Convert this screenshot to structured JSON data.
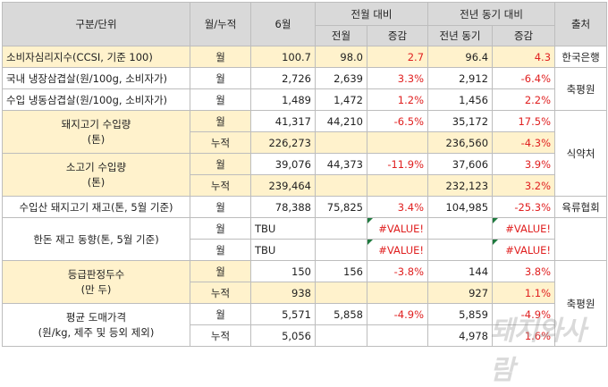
{
  "header": {
    "category": "구분/단위",
    "period": "월/누적",
    "month": "6월",
    "mom_group": "전월 대비",
    "yoy_group": "전년 동기 대비",
    "source": "출처",
    "prev_month": "전월",
    "change": "증감",
    "prev_year": "전년 동기",
    "change2": "증감"
  },
  "rows": [
    {
      "label": "소비자심리지수(CCSI, 기준 100)",
      "period": "월",
      "value": "100.7",
      "prev": "98.0",
      "chg": "2.7",
      "py": "96.4",
      "pychg": "4.3",
      "source": "한국은행"
    },
    {
      "label": "국내 냉장삼겹살(원/100g, 소비자가)",
      "period": "월",
      "value": "2,726",
      "prev": "2,639",
      "chg": "3.3%",
      "py": "2,912",
      "pychg": "-6.4%",
      "source": "축평원"
    },
    {
      "label": "수입 냉동삼겹살(원/100g, 소비자가)",
      "period": "월",
      "value": "1,489",
      "prev": "1,472",
      "chg": "1.2%",
      "py": "1,456",
      "pychg": "2.2%"
    },
    {
      "label": "돼지고기 수입량\n(톤)",
      "period": "월",
      "value": "41,317",
      "prev": "44,210",
      "chg": "-6.5%",
      "py": "35,172",
      "pychg": "17.5%",
      "source": "식약처"
    },
    {
      "period": "누적",
      "value": "226,273",
      "prev": "",
      "chg": "",
      "py": "236,560",
      "pychg": "-4.3%"
    },
    {
      "label": "소고기 수입량\n(톤)",
      "period": "월",
      "value": "39,076",
      "prev": "44,373",
      "chg": "-11.9%",
      "py": "37,606",
      "pychg": "3.9%"
    },
    {
      "period": "누적",
      "value": "239,464",
      "prev": "",
      "chg": "",
      "py": "232,123",
      "pychg": "3.2%"
    },
    {
      "label": "수입산 돼지고기 재고(톤, 5월 기준)",
      "period": "월",
      "value": "78,388",
      "prev": "75,825",
      "chg": "3.4%",
      "py": "104,985",
      "pychg": "-25.3%",
      "source": "육류협회"
    },
    {
      "label": "한돈 재고 동향(톤, 5월 기준)",
      "period": "월",
      "value": "TBU",
      "prev": "",
      "chg": "#VALUE!",
      "py": "",
      "pychg": "#VALUE!"
    },
    {
      "period": "월",
      "value": "TBU",
      "prev": "",
      "chg": "#VALUE!",
      "py": "",
      "pychg": "#VALUE!"
    },
    {
      "label": "등급판정두수\n(만 두)",
      "period": "월",
      "value": "150",
      "prev": "156",
      "chg": "-3.8%",
      "py": "144",
      "pychg": "3.8%",
      "source": "축평원"
    },
    {
      "period": "누적",
      "value": "938",
      "prev": "",
      "chg": "",
      "py": "927",
      "pychg": "1.1%"
    },
    {
      "label": "평균 도매가격\n(원/kg, 제주 및 등외 제외)",
      "period": "월",
      "value": "5,571",
      "prev": "5,858",
      "chg": "-4.9%",
      "py": "5,859",
      "pychg": "-4.9%"
    },
    {
      "period": "누적",
      "value": "5,056",
      "prev": "",
      "chg": "",
      "py": "4,978",
      "pychg": "1.6%"
    }
  ],
  "watermark": "돼지와사람"
}
